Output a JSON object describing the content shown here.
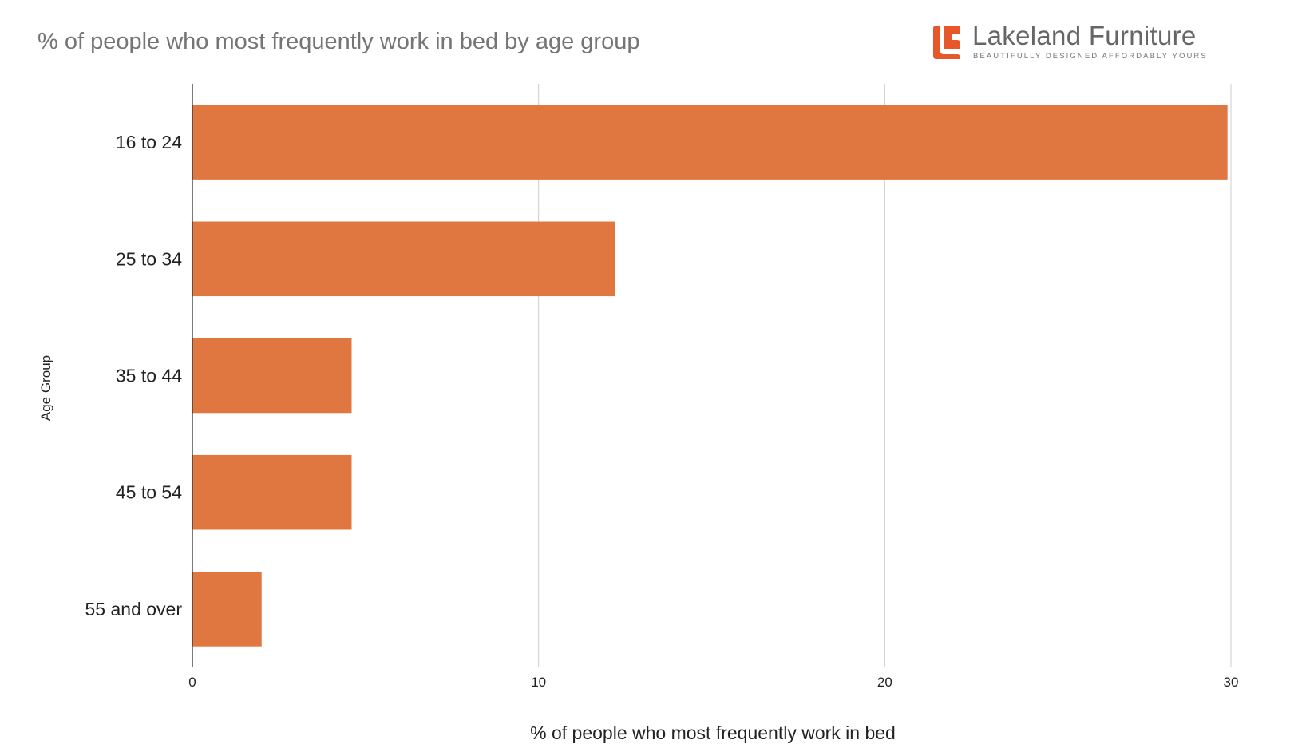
{
  "chart_data": {
    "type": "bar",
    "orientation": "horizontal",
    "title": "% of people who most frequently work in bed by age group",
    "xlabel": "% of people who most frequently work in bed",
    "ylabel": "Age Group",
    "categories": [
      "16 to 24",
      "25 to 34",
      "35 to 44",
      "45 to 54",
      "55 and over"
    ],
    "values": [
      29.9,
      12.2,
      4.6,
      4.6,
      2.0
    ],
    "xlim": [
      0,
      30
    ],
    "x_ticks": [
      "0",
      "10",
      "20",
      "30"
    ],
    "grid": "vertical",
    "bar_color": "#e07640",
    "legend": "none"
  },
  "logo": {
    "name": "Lakeland Furniture",
    "tagline": "BEAUTIFULLY DESIGNED AFFORDABLY YOURS",
    "brand_color": "#e8572a"
  }
}
